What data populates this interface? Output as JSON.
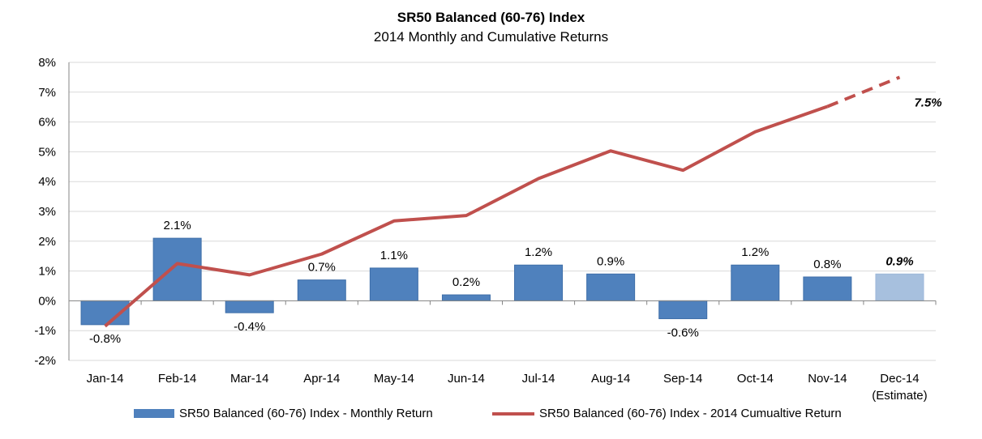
{
  "chart_data": {
    "type": "bar",
    "title": "SR50 Balanced (60-76) Index",
    "subtitle": "2014 Monthly and Cumulative Returns",
    "categories": [
      "Jan-14",
      "Feb-14",
      "Mar-14",
      "Apr-14",
      "May-14",
      "Jun-14",
      "Jul-14",
      "Aug-14",
      "Sep-14",
      "Oct-14",
      "Nov-14",
      "Dec-14"
    ],
    "category_sublabels": [
      "",
      "",
      "",
      "",
      "",
      "",
      "",
      "",
      "",
      "",
      "",
      "(Estimate)"
    ],
    "ylim": [
      -2,
      8
    ],
    "yticks": [
      -2,
      -1,
      0,
      1,
      2,
      3,
      4,
      5,
      6,
      7,
      8
    ],
    "ytick_labels": [
      "-2%",
      "-1%",
      "0%",
      "1%",
      "2%",
      "3%",
      "4%",
      "5%",
      "6%",
      "7%",
      "8%"
    ],
    "grid": true,
    "legend_position": "bottom",
    "series": [
      {
        "name": "SR50 Balanced (60-76) Index - Monthly Return",
        "type": "bar",
        "values": [
          -0.8,
          2.1,
          -0.4,
          0.7,
          1.1,
          0.2,
          1.2,
          0.9,
          -0.6,
          1.2,
          0.8,
          0.9
        ],
        "labels": [
          "-0.8%",
          "2.1%",
          "-0.4%",
          "0.7%",
          "1.1%",
          "0.2%",
          "1.2%",
          "0.9%",
          "-0.6%",
          "1.2%",
          "0.8%",
          "0.9%"
        ],
        "color": "#4f81bd",
        "estimate_color": "#a7c0de",
        "estimate_index": 11
      },
      {
        "name": "SR50 Balanced (60-76) Index - 2014 Cumualtive Return",
        "type": "line",
        "values": [
          -0.85,
          1.25,
          0.87,
          1.57,
          2.68,
          2.86,
          4.1,
          5.03,
          4.38,
          5.67,
          6.52,
          7.5
        ],
        "end_label": "7.5%",
        "dashed_from_index": 10,
        "color": "#c0504d"
      }
    ]
  }
}
